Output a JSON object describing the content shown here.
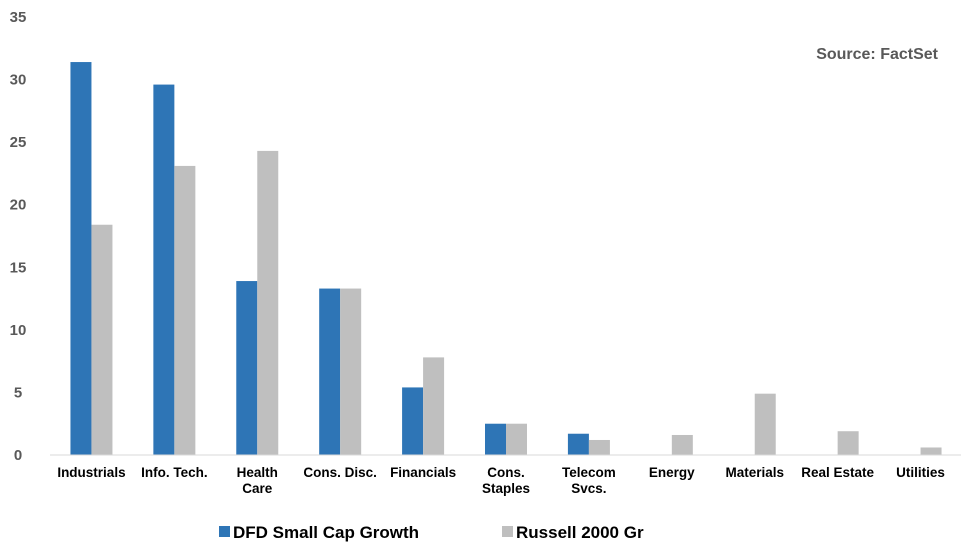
{
  "chart_data": {
    "type": "bar",
    "source_note": "Source: FactSet",
    "categories": [
      [
        "Industrials"
      ],
      [
        "Info. Tech."
      ],
      [
        "Health",
        "Care"
      ],
      [
        "Cons. Disc."
      ],
      [
        "Financials"
      ],
      [
        "Cons.",
        "Staples"
      ],
      [
        "Telecom",
        "Svcs."
      ],
      [
        "Energy"
      ],
      [
        "Materials"
      ],
      [
        "Real Estate"
      ],
      [
        "Utilities"
      ]
    ],
    "series": [
      {
        "name": "DFD Small Cap Growth",
        "color": "#2e75b6",
        "values": [
          31.4,
          29.6,
          13.9,
          13.3,
          5.4,
          2.5,
          1.7,
          0,
          0,
          0,
          0
        ]
      },
      {
        "name": "Russell 2000 Gr",
        "color": "#bfbfbf",
        "values": [
          18.4,
          23.1,
          24.3,
          13.3,
          7.8,
          2.5,
          1.2,
          1.6,
          4.9,
          1.9,
          0.6
        ]
      }
    ],
    "y_ticks": [
      "0",
      "5",
      "10",
      "15",
      "20",
      "25",
      "30",
      "35"
    ],
    "ylim": [
      0,
      35
    ],
    "grid": false,
    "legend_position": "bottom-center",
    "xlabel": "",
    "ylabel": ""
  }
}
